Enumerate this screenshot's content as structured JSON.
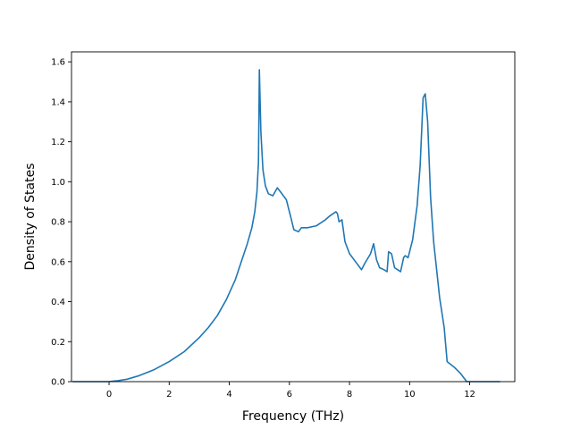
{
  "chart_data": {
    "type": "line",
    "title": "",
    "xlabel": "Frequency (THz)",
    "ylabel": "Density of States",
    "xlim": [
      -1.25,
      13.5
    ],
    "ylim": [
      0.0,
      1.65
    ],
    "xticks": [
      0,
      2,
      4,
      6,
      8,
      10,
      12
    ],
    "yticks": [
      0.0,
      0.2,
      0.4,
      0.6,
      0.8,
      1.0,
      1.2,
      1.4,
      1.6
    ],
    "xtick_labels": [
      "0",
      "2",
      "4",
      "6",
      "8",
      "10",
      "12"
    ],
    "ytick_labels": [
      "0.0",
      "0.2",
      "0.4",
      "0.6",
      "0.8",
      "1.0",
      "1.2",
      "1.4",
      "1.6"
    ],
    "grid": false,
    "legend": "none",
    "line_color": "#1f77b4",
    "series": [
      {
        "x": [
          -1.2,
          -0.5,
          0.0,
          0.3,
          0.6,
          1.0,
          1.5,
          2.0,
          2.5,
          3.0,
          3.3,
          3.6,
          3.9,
          4.2,
          4.4,
          4.6,
          4.75,
          4.85,
          4.92,
          4.97,
          5.0,
          5.05,
          5.12,
          5.2,
          5.3,
          5.45,
          5.6,
          5.7,
          5.9,
          6.05,
          6.15,
          6.3,
          6.4,
          6.6,
          6.9,
          7.2,
          7.35,
          7.55,
          7.6,
          7.65,
          7.75,
          7.85,
          8.0,
          8.2,
          8.35,
          8.4,
          8.5,
          8.7,
          8.8,
          8.9,
          9.0,
          9.15,
          9.25,
          9.3,
          9.4,
          9.5,
          9.6,
          9.7,
          9.8,
          9.85,
          9.95,
          10.1,
          10.25,
          10.35,
          10.45,
          10.52,
          10.6,
          10.7,
          10.8,
          11.0,
          11.15,
          11.25,
          11.5,
          11.7,
          11.8,
          11.9,
          12.5,
          13.0
        ],
        "y": [
          0.0,
          0.0,
          0.0,
          0.005,
          0.012,
          0.03,
          0.06,
          0.1,
          0.15,
          0.22,
          0.27,
          0.33,
          0.41,
          0.51,
          0.6,
          0.69,
          0.77,
          0.85,
          0.95,
          1.1,
          1.56,
          1.25,
          1.06,
          0.98,
          0.94,
          0.93,
          0.97,
          0.95,
          0.91,
          0.82,
          0.76,
          0.75,
          0.77,
          0.77,
          0.78,
          0.81,
          0.83,
          0.85,
          0.84,
          0.8,
          0.81,
          0.7,
          0.64,
          0.6,
          0.57,
          0.56,
          0.59,
          0.64,
          0.69,
          0.61,
          0.57,
          0.56,
          0.55,
          0.65,
          0.64,
          0.57,
          0.56,
          0.55,
          0.62,
          0.63,
          0.62,
          0.71,
          0.88,
          1.08,
          1.42,
          1.44,
          1.3,
          0.92,
          0.7,
          0.42,
          0.27,
          0.1,
          0.07,
          0.04,
          0.02,
          0.0,
          0.0,
          0.0
        ]
      }
    ]
  }
}
